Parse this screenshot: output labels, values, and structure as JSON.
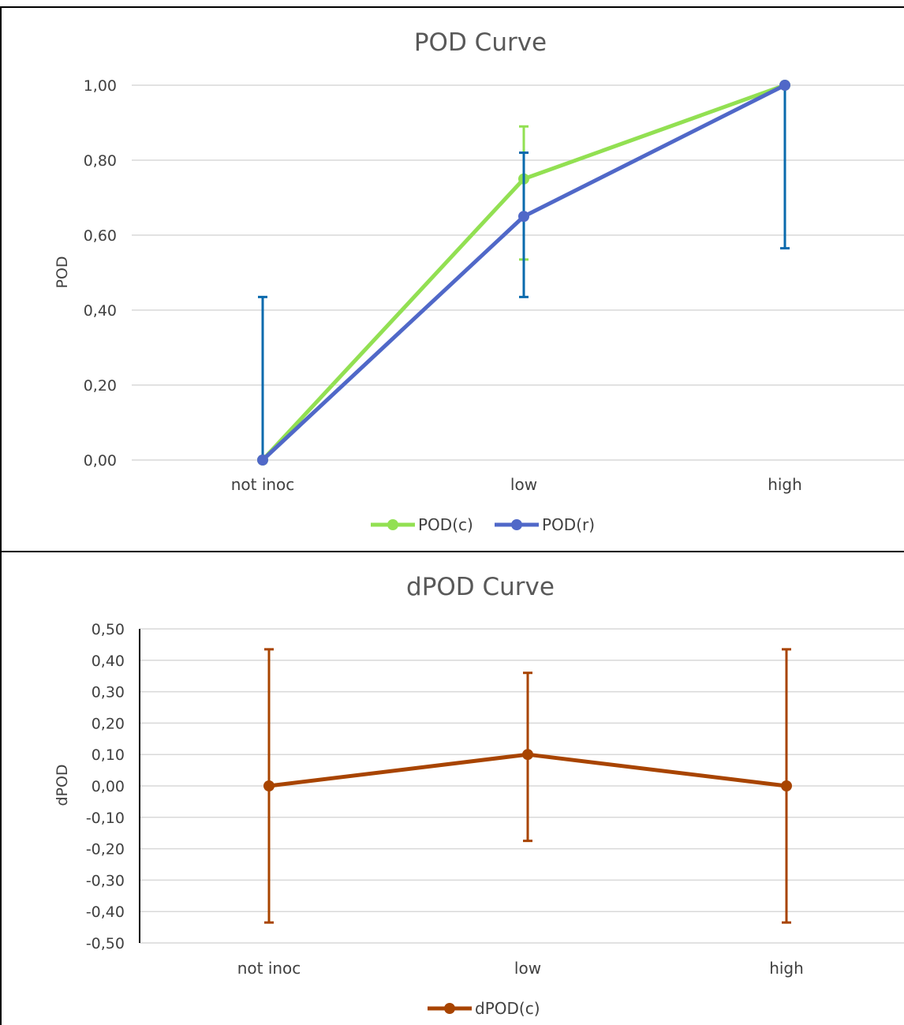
{
  "chart_data": [
    {
      "type": "line",
      "title": "POD Curve",
      "xlabel": "",
      "ylabel": "POD",
      "ylim": [
        0,
        1
      ],
      "y_ticks": [
        "0,00",
        "0,20",
        "0,40",
        "0,60",
        "0,80",
        "1,00"
      ],
      "categories": [
        "not inoc",
        "low",
        "high"
      ],
      "grid": true,
      "legend_position": "bottom",
      "series": [
        {
          "name": "POD(c)",
          "color": "#92e052",
          "values": [
            0,
            0.75,
            1.0
          ],
          "error_low": [
            null,
            0.535,
            null
          ],
          "error_high": [
            null,
            0.89,
            null
          ]
        },
        {
          "name": "POD(r)",
          "color": "#5068c8",
          "error_color": "#0a6aad",
          "values": [
            0,
            0.65,
            1.0
          ],
          "error_low": [
            0,
            0.435,
            0.565
          ],
          "error_high": [
            0.435,
            0.82,
            1.0
          ]
        }
      ]
    },
    {
      "type": "line",
      "title": "dPOD Curve",
      "xlabel": "",
      "ylabel": "dPOD",
      "ylim": [
        -0.5,
        0.5
      ],
      "y_ticks": [
        "-0,50",
        "-0,40",
        "-0,30",
        "-0,20",
        "-0,10",
        "0,00",
        "0,10",
        "0,20",
        "0,30",
        "0,40",
        "0,50"
      ],
      "categories": [
        "not inoc",
        "low",
        "high"
      ],
      "grid": true,
      "legend_position": "bottom",
      "series": [
        {
          "name": "dPOD(c)",
          "color": "#a84400",
          "values": [
            0,
            0.1,
            0
          ],
          "error_low": [
            -0.435,
            -0.175,
            -0.435
          ],
          "error_high": [
            0.435,
            0.36,
            0.435
          ]
        }
      ]
    }
  ]
}
